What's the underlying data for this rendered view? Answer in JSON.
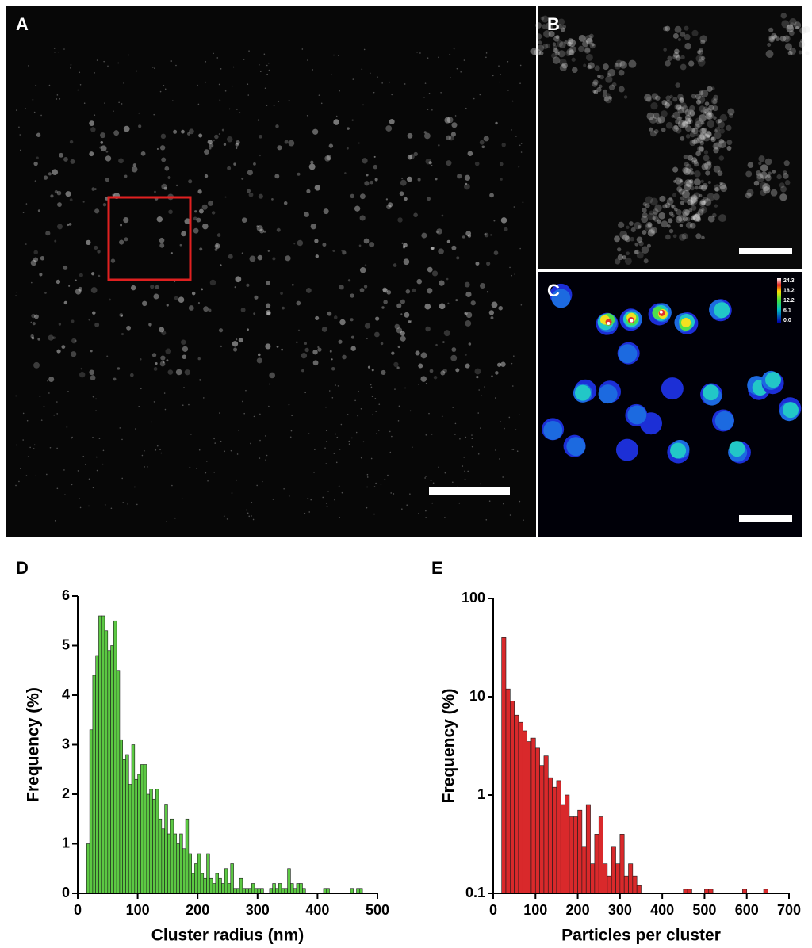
{
  "images": [
    {
      "label": "A"
    },
    {
      "label": "B"
    },
    {
      "label": "C",
      "colorbar_labels": [
        "24.3",
        "18.2",
        "12.2",
        "6.1",
        "0.0"
      ]
    }
  ],
  "chart_data": [
    {
      "type": "histogram",
      "label": "D",
      "xlabel": "Cluster radius (nm)",
      "ylabel": "Frequency (%)",
      "color": "#5cc943",
      "bins": [
        15,
        20,
        25,
        30,
        35,
        40,
        45,
        50,
        55,
        60,
        65,
        70,
        75,
        80,
        85,
        90,
        95,
        100,
        105,
        110,
        115,
        120,
        125,
        130,
        135,
        140,
        145,
        150,
        155,
        160,
        165,
        170,
        175,
        180,
        185,
        190,
        195,
        200,
        205,
        210,
        215,
        220,
        225,
        230,
        235,
        240,
        245,
        250,
        255,
        260,
        265,
        270,
        275,
        280,
        285,
        290,
        295,
        300,
        305,
        310,
        315,
        320,
        325,
        330,
        335,
        340,
        345,
        350,
        355,
        360,
        365,
        370,
        375,
        380,
        385,
        390,
        395,
        400,
        405,
        410,
        415,
        420,
        425,
        430,
        435,
        440,
        445,
        450,
        455,
        460,
        465,
        470,
        475
      ],
      "values": [
        1.0,
        3.3,
        4.4,
        4.8,
        5.6,
        5.6,
        5.3,
        4.9,
        5.0,
        5.5,
        4.5,
        3.1,
        2.7,
        2.8,
        2.2,
        3.0,
        2.3,
        2.4,
        2.6,
        2.6,
        2.0,
        2.1,
        1.9,
        2.1,
        1.5,
        1.3,
        1.8,
        1.2,
        1.5,
        1.2,
        1.0,
        1.2,
        0.9,
        1.5,
        0.8,
        0.4,
        0.6,
        0.8,
        0.4,
        0.3,
        0.8,
        0.3,
        0.2,
        0.4,
        0.3,
        0.2,
        0.5,
        0.2,
        0.6,
        0.1,
        0.1,
        0.3,
        0.1,
        0.1,
        0.1,
        0.2,
        0.1,
        0.1,
        0.1,
        0,
        0,
        0.1,
        0.2,
        0.1,
        0.2,
        0.1,
        0.1,
        0.5,
        0.2,
        0.1,
        0.2,
        0.2,
        0.1,
        0,
        0,
        0,
        0,
        0,
        0,
        0.1,
        0.1,
        0,
        0,
        0,
        0,
        0,
        0,
        0,
        0.1,
        0,
        0.1,
        0.1
      ],
      "xlim": [
        0,
        500
      ],
      "xticks": [
        0,
        100,
        200,
        300,
        400,
        500
      ],
      "ylim": [
        0,
        6
      ],
      "yticks": [
        0,
        1,
        2,
        3,
        4,
        5,
        6
      ],
      "log": false
    },
    {
      "type": "histogram",
      "label": "E",
      "xlabel": "Particles per cluster",
      "ylabel": "Frequency (%)",
      "color": "#d9292b",
      "bins": [
        20,
        30,
        40,
        50,
        60,
        70,
        80,
        90,
        100,
        110,
        120,
        130,
        140,
        150,
        160,
        170,
        180,
        190,
        200,
        210,
        220,
        230,
        240,
        250,
        260,
        270,
        280,
        290,
        300,
        310,
        320,
        330,
        340,
        350,
        360,
        370,
        380,
        390,
        400,
        410,
        420,
        430,
        440,
        450,
        460,
        470,
        480,
        490,
        500,
        510,
        520,
        530,
        540,
        550,
        560,
        570,
        580,
        590,
        600,
        610,
        620,
        630,
        640,
        650,
        660
      ],
      "values": [
        40,
        12,
        9,
        6.5,
        5.5,
        4.5,
        3.5,
        3.8,
        3,
        2,
        2.5,
        1.5,
        1.2,
        1.4,
        0.8,
        1,
        0.6,
        0.6,
        0.7,
        0.3,
        0.8,
        0.2,
        0.4,
        0.6,
        0.2,
        0.15,
        0.3,
        0.2,
        0.4,
        0.15,
        0.2,
        0.15,
        0.12,
        0,
        0,
        0,
        0,
        0,
        0,
        0,
        0,
        0,
        0,
        0.11,
        0.11,
        0,
        0,
        0,
        0.11,
        0.11,
        0,
        0,
        0,
        0,
        0,
        0,
        0,
        0.11,
        0,
        0,
        0,
        0,
        0.11,
        0
      ],
      "xlim": [
        0,
        700
      ],
      "xticks": [
        0,
        100,
        200,
        300,
        400,
        500,
        600,
        700
      ],
      "ylim": [
        0.1,
        100
      ],
      "yticks": [
        0.1,
        1,
        10,
        100
      ],
      "log": true
    }
  ]
}
